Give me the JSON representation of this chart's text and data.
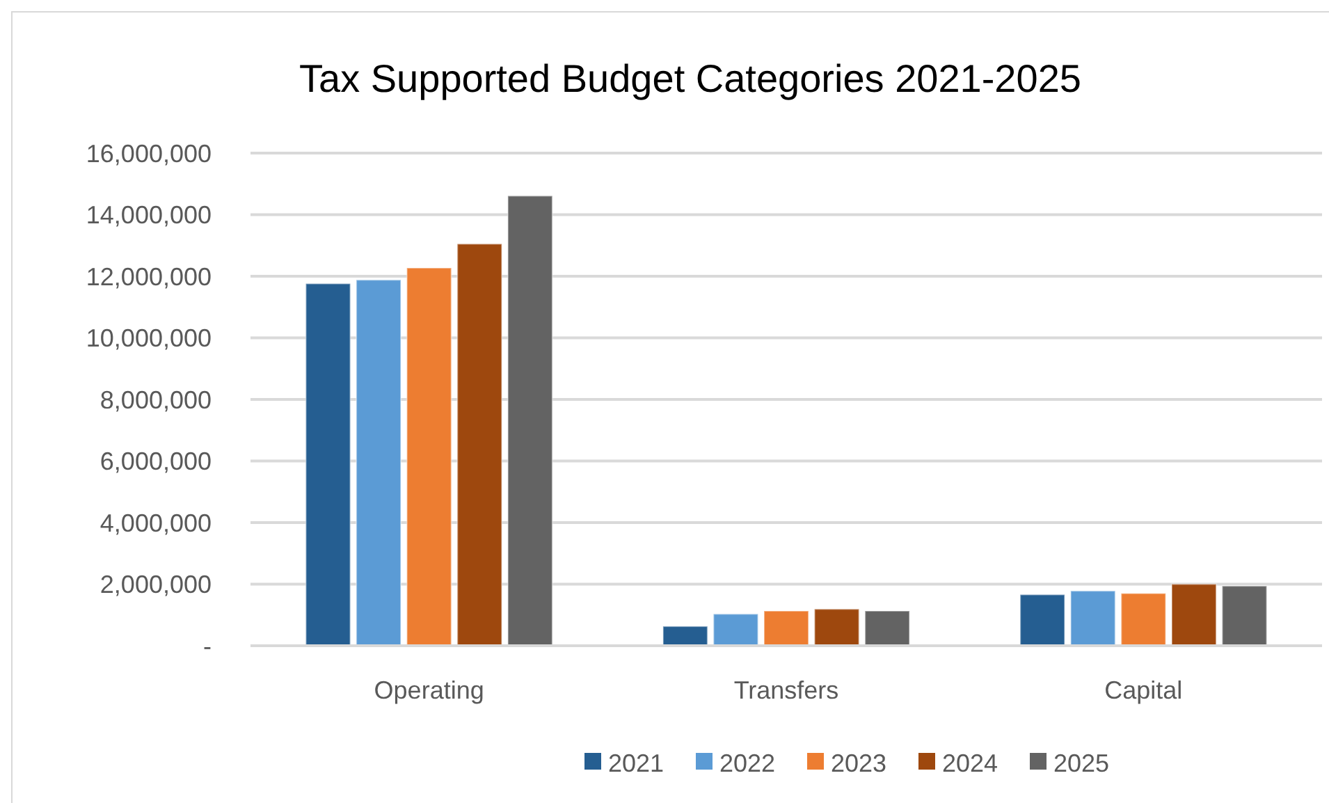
{
  "chart_data": {
    "type": "bar",
    "title": "Tax Supported  Budget Categories 2021-2025",
    "categories": [
      "Operating",
      "Transfers",
      "Capital"
    ],
    "series": [
      {
        "name": "2021",
        "color": "#255e91",
        "values": [
          11760000,
          630000,
          1660000
        ]
      },
      {
        "name": "2022",
        "color": "#5b9bd5",
        "values": [
          11880000,
          1030000,
          1780000
        ]
      },
      {
        "name": "2023",
        "color": "#ed7d31",
        "values": [
          12270000,
          1130000,
          1700000
        ]
      },
      {
        "name": "2024",
        "color": "#9e480e",
        "values": [
          13050000,
          1190000,
          2000000
        ]
      },
      {
        "name": "2025",
        "color": "#636363",
        "values": [
          14610000,
          1130000,
          1940000
        ]
      }
    ],
    "ylim": [
      0,
      16000000
    ],
    "yticks": [
      {
        "value": 0,
        "label": "-"
      },
      {
        "value": 2000000,
        "label": "2,000,000"
      },
      {
        "value": 4000000,
        "label": "4,000,000"
      },
      {
        "value": 6000000,
        "label": "6,000,000"
      },
      {
        "value": 8000000,
        "label": "8,000,000"
      },
      {
        "value": 10000000,
        "label": "10,000,000"
      },
      {
        "value": 12000000,
        "label": "12,000,000"
      },
      {
        "value": 14000000,
        "label": "14,000,000"
      },
      {
        "value": 16000000,
        "label": "16,000,000"
      }
    ],
    "grid": "y",
    "legend": "bottom"
  }
}
